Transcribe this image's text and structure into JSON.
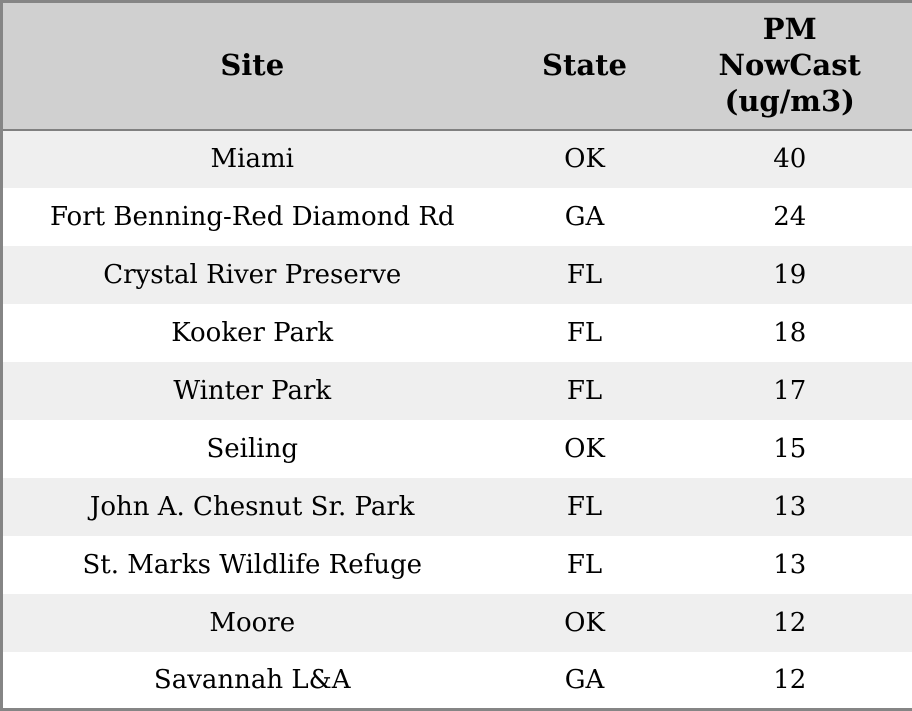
{
  "table": {
    "columns": [
      {
        "key": "site",
        "label": "Site"
      },
      {
        "key": "state",
        "label": "State"
      },
      {
        "key": "pm",
        "label": "PM\nNowCast\n(ug/m3)"
      }
    ],
    "rows": [
      {
        "site": "Miami",
        "state": "OK",
        "pm": "40"
      },
      {
        "site": "Fort Benning-Red Diamond Rd",
        "state": "GA",
        "pm": "24"
      },
      {
        "site": "Crystal River Preserve",
        "state": "FL",
        "pm": "19"
      },
      {
        "site": "Kooker Park",
        "state": "FL",
        "pm": "18"
      },
      {
        "site": "Winter Park",
        "state": "FL",
        "pm": "17"
      },
      {
        "site": "Seiling",
        "state": "OK",
        "pm": "15"
      },
      {
        "site": "John A. Chesnut Sr. Park",
        "state": "FL",
        "pm": "13"
      },
      {
        "site": "St. Marks Wildlife Refuge",
        "state": "FL",
        "pm": "13"
      },
      {
        "site": "Moore",
        "state": "OK",
        "pm": "12"
      },
      {
        "site": "Savannah L&A",
        "state": "GA",
        "pm": "12"
      }
    ]
  },
  "colors": {
    "header_bg": "#d0d0d0",
    "stripe_bg": "#efefef",
    "row_bg": "#ffffff",
    "border": "#858585",
    "header_divider": "#808080",
    "text": "#000000"
  },
  "chart_data": {
    "type": "table",
    "title": "",
    "columns": [
      "Site",
      "State",
      "PM NowCast (ug/m3)"
    ],
    "rows": [
      [
        "Miami",
        "OK",
        40
      ],
      [
        "Fort Benning-Red Diamond Rd",
        "GA",
        24
      ],
      [
        "Crystal River Preserve",
        "FL",
        19
      ],
      [
        "Kooker Park",
        "FL",
        18
      ],
      [
        "Winter Park",
        "FL",
        17
      ],
      [
        "Seiling",
        "OK",
        15
      ],
      [
        "John A. Chesnut Sr. Park",
        "FL",
        13
      ],
      [
        "St. Marks Wildlife Refuge",
        "FL",
        13
      ],
      [
        "Moore",
        "OK",
        12
      ],
      [
        "Savannah L&A",
        "GA",
        12
      ]
    ]
  }
}
